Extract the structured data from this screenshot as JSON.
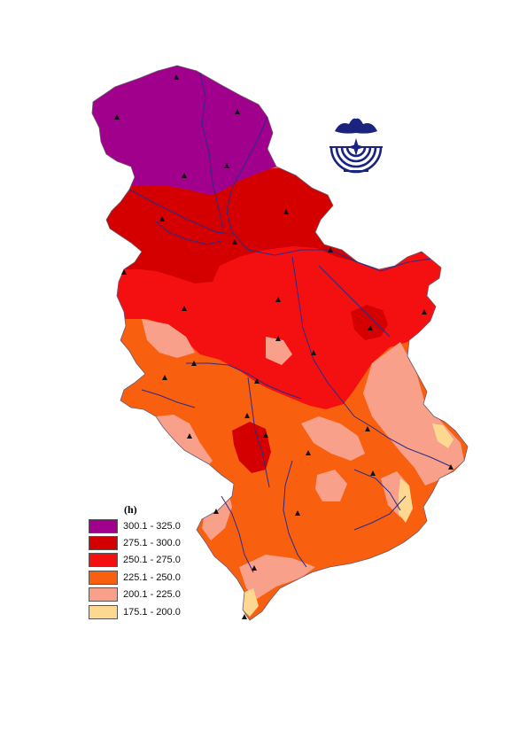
{
  "legend": {
    "title": "(h)",
    "items": [
      {
        "label": "300.1 - 325.0",
        "color": "#a0008c"
      },
      {
        "label": "275.1 - 300.0",
        "color": "#d40000"
      },
      {
        "label": "250.1 - 275.0",
        "color": "#f41010"
      },
      {
        "label": "225.1 - 250.0",
        "color": "#f86010"
      },
      {
        "label": "200.1 - 225.0",
        "color": "#f8a08a"
      },
      {
        "label": "175.1 - 200.0",
        "color": "#fcd890"
      }
    ]
  },
  "colors": {
    "river": "#2a2a8a",
    "station": "#111111",
    "logo": "#1a237e"
  },
  "icons": {
    "logo": "institution-emblem-icon",
    "station": "triangle-station-icon"
  }
}
